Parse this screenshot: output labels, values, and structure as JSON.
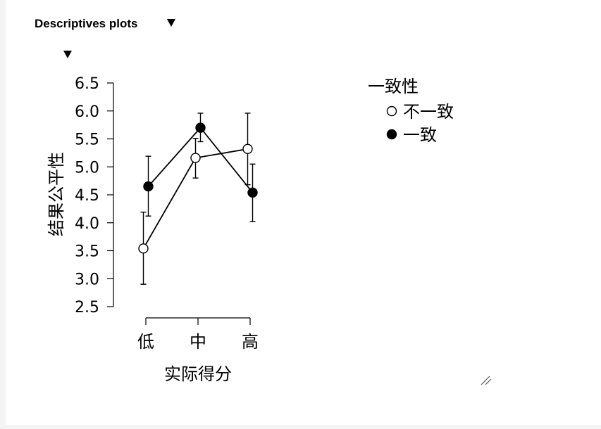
{
  "header": {
    "title": "Descriptives plots"
  },
  "chart_data": {
    "type": "line",
    "xlabel": "实际得分",
    "ylabel": "结果公平性",
    "categories": [
      "低",
      "中",
      "高"
    ],
    "ylim": [
      2.5,
      6.5
    ],
    "yticks": [
      "2.5",
      "3.0",
      "3.5",
      "4.0",
      "4.5",
      "5.0",
      "5.5",
      "6.0",
      "6.5"
    ],
    "legend": {
      "title": "一致性",
      "placement": "top-right"
    },
    "grid": false,
    "series": [
      {
        "name": "不一致",
        "marker": "open-circle",
        "values": [
          3.54,
          5.16,
          5.32
        ],
        "error_low": [
          2.9,
          4.8,
          4.68
        ],
        "error_high": [
          4.19,
          5.51,
          5.96
        ]
      },
      {
        "name": "一致",
        "marker": "filled-circle",
        "values": [
          4.65,
          5.7,
          4.54
        ],
        "error_low": [
          4.12,
          5.45,
          4.02
        ],
        "error_high": [
          5.19,
          5.96,
          5.05
        ]
      }
    ]
  }
}
